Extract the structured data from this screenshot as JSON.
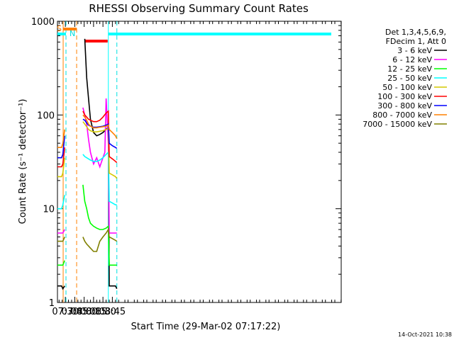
{
  "chart_data": {
    "type": "line",
    "title": "RHESSI Observing Summary Count Rates",
    "xlabel": "Start Time (29-Mar-02 07:17:22)",
    "ylabel": "Count Rate (s⁻¹ detector⁻¹)",
    "y_scale": "log",
    "ylim": [
      1,
      1000
    ],
    "xlim_minutes": [
      437.4,
      890.2
    ],
    "x_ticks": [
      {
        "label": "07:30",
        "minute": 450
      },
      {
        "label": "07:45",
        "minute": 465
      },
      {
        "label": "08:00",
        "minute": 480
      },
      {
        "label": "08:15",
        "minute": 495
      },
      {
        "label": "08:30",
        "minute": 510
      },
      {
        "label": "08:45",
        "minute": 525
      }
    ],
    "y_ticks": [
      {
        "label": "1",
        "value": 1
      },
      {
        "label": "10",
        "value": 10
      },
      {
        "label": "100",
        "value": 100
      },
      {
        "label": "1000",
        "value": 1000
      }
    ],
    "legend_header": [
      "Det 1,3,4,5,6,9,",
      "FDecim 1, Att 0"
    ],
    "legend_placement": "right",
    "series": [
      {
        "name": "3 - 6 keV",
        "color": "#000000",
        "x": [
          437.4,
          444,
          446,
          449,
          458.5,
          468,
          475,
          481,
          484,
          487,
          490,
          495,
          500,
          505,
          510,
          515,
          518.6,
          520,
          525,
          530,
          532.2
        ],
        "y": [
          1.5,
          1.5,
          1.4,
          1.5,
          null,
          null,
          null,
          650,
          250,
          150,
          90,
          65,
          60,
          62,
          65,
          70,
          75,
          1.5,
          1.5,
          1.5,
          1.4
        ]
      },
      {
        "name": "6 - 12 keV",
        "color": "#ff00ff",
        "x": [
          437.4,
          444,
          446,
          449,
          458.5,
          468,
          475,
          478,
          481,
          484,
          487,
          490,
          495,
          500,
          505,
          510,
          513,
          515,
          518.6,
          520,
          525,
          530,
          532.2
        ],
        "y": [
          5.5,
          5.5,
          5.5,
          6,
          null,
          null,
          null,
          120,
          100,
          80,
          55,
          40,
          30,
          35,
          28,
          35,
          40,
          150,
          50,
          5.5,
          5.5,
          5.5,
          5.5
        ]
      },
      {
        "name": "12 - 25 keV",
        "color": "#00ff00",
        "x": [
          437.4,
          444,
          446,
          449,
          458.5,
          468,
          475,
          478,
          481,
          484,
          487,
          490,
          495,
          500,
          505,
          510,
          515,
          518.6,
          520,
          525,
          530,
          532.2
        ],
        "y": [
          2.5,
          2.5,
          2.5,
          2.8,
          null,
          null,
          null,
          18,
          12,
          10,
          8,
          7,
          6.5,
          6.2,
          6,
          6,
          6.2,
          6.5,
          2.5,
          2.5,
          2.5,
          2.5
        ]
      },
      {
        "name": "25 - 50 keV",
        "color": "#00ffff",
        "x": [
          437.4,
          444,
          446,
          449,
          458.5,
          468,
          475,
          478,
          481,
          484,
          487,
          490,
          495,
          500,
          505,
          510,
          515,
          518.6,
          520,
          525,
          530,
          532.2
        ],
        "y": [
          10,
          10,
          11,
          14,
          null,
          null,
          null,
          38,
          36,
          35,
          34,
          33,
          32,
          32,
          33,
          35,
          38,
          40,
          12,
          11.5,
          11,
          11
        ]
      },
      {
        "name": "50 - 100 keV",
        "color": "#d4c800",
        "x": [
          437.4,
          444,
          446,
          449,
          458.5,
          468,
          475,
          478,
          481,
          484,
          487,
          490,
          495,
          500,
          505,
          510,
          515,
          518.6,
          520,
          525,
          530,
          532.2
        ],
        "y": [
          22,
          22,
          24,
          35,
          null,
          null,
          null,
          85,
          80,
          75,
          70,
          68,
          66,
          66,
          67,
          68,
          70,
          72,
          24,
          23,
          22,
          21
        ]
      },
      {
        "name": "100 - 300 keV",
        "color": "#ff0000",
        "x": [
          437.4,
          444,
          446,
          449,
          458.5,
          468,
          475,
          478,
          481,
          484,
          487,
          490,
          495,
          500,
          505,
          510,
          515,
          518.6,
          520,
          525,
          530,
          532.2
        ],
        "y": [
          28,
          28,
          30,
          45,
          null,
          null,
          null,
          110,
          100,
          95,
          90,
          88,
          85,
          85,
          88,
          95,
          105,
          110,
          36,
          34,
          32,
          31
        ]
      },
      {
        "name": "300 - 800 keV",
        "color": "#0000ff",
        "x": [
          437.4,
          444,
          446,
          449,
          458.5,
          468,
          475,
          478,
          481,
          484,
          487,
          490,
          495,
          500,
          505,
          510,
          515,
          518.6,
          520,
          525,
          530,
          532.2
        ],
        "y": [
          35,
          35,
          38,
          60,
          null,
          null,
          null,
          90,
          88,
          82,
          78,
          76,
          74,
          74,
          75,
          76,
          78,
          80,
          50,
          47,
          45,
          44
        ]
      },
      {
        "name": "800 - 7000 keV",
        "color": "#ff8000",
        "x": [
          437.4,
          444,
          446,
          449,
          458.5,
          468,
          475,
          478,
          481,
          484,
          487,
          490,
          495,
          500,
          505,
          510,
          515,
          518.6,
          520,
          525,
          530,
          532.2
        ],
        "y": [
          45,
          45,
          50,
          70,
          null,
          null,
          null,
          100,
          95,
          88,
          80,
          76,
          73,
          73,
          74,
          75,
          76,
          78,
          70,
          65,
          60,
          56
        ]
      },
      {
        "name": "7000 - 15000 keV",
        "color": "#808000",
        "x": [
          437.4,
          444,
          446,
          449,
          458.5,
          468,
          475,
          478,
          481,
          484,
          487,
          490,
          495,
          500,
          505,
          510,
          515,
          518.6,
          520,
          525,
          530,
          532.2
        ],
        "y": [
          4.5,
          4.5,
          4.5,
          5,
          null,
          null,
          null,
          5,
          4.5,
          4.2,
          4,
          3.8,
          3.5,
          3.5,
          4.5,
          5,
          5.5,
          6,
          5,
          4.8,
          4.6,
          4.5
        ]
      }
    ],
    "annotations": {
      "saa_label": "S",
      "night_label": "N"
    }
  },
  "footer": {
    "timestamp": "14-Oct-2021 10:38"
  }
}
